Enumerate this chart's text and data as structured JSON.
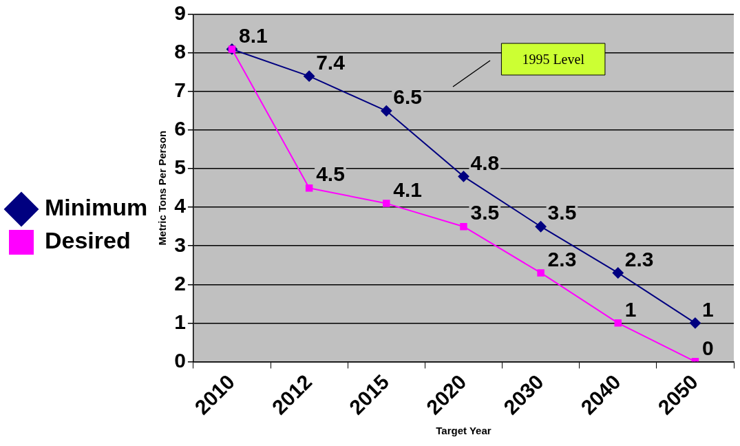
{
  "chart_data": {
    "type": "line",
    "xlabel": "Target Year",
    "ylabel": "Metric Tons Per Person",
    "categories": [
      "2010",
      "2012",
      "2015",
      "2020",
      "2030",
      "2040",
      "2050"
    ],
    "series": [
      {
        "name": "Minimum",
        "color": "#000080",
        "marker": "diamond",
        "values": [
          8.1,
          7.4,
          6.5,
          4.8,
          3.5,
          2.3,
          1
        ]
      },
      {
        "name": "Desired",
        "color": "#ff00ff",
        "marker": "square",
        "values": [
          8.1,
          4.5,
          4.1,
          3.5,
          2.3,
          1,
          0
        ],
        "value_labels": [
          null,
          "4.5",
          "4.1",
          "3.5",
          "2.3",
          "1",
          "0"
        ]
      }
    ],
    "ylim": [
      0,
      9
    ],
    "yticks": [
      0,
      1,
      2,
      3,
      4,
      5,
      6,
      7,
      8,
      9
    ],
    "grid": "y",
    "legend": "left",
    "data_labels": true,
    "annotations": [
      "1995 Level"
    ]
  }
}
